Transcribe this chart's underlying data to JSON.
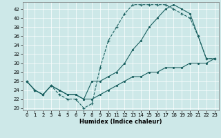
{
  "xlabel": "Humidex (Indice chaleur)",
  "bg_color": "#cde8e8",
  "line_color": "#1a6060",
  "xlim": [
    -0.5,
    23.5
  ],
  "ylim": [
    19.5,
    43.5
  ],
  "yticks": [
    20,
    22,
    24,
    26,
    28,
    30,
    32,
    34,
    36,
    38,
    40,
    42
  ],
  "xticks": [
    0,
    1,
    2,
    3,
    4,
    5,
    6,
    7,
    8,
    9,
    10,
    11,
    12,
    13,
    14,
    15,
    16,
    17,
    18,
    19,
    20,
    21,
    22,
    23
  ],
  "line1_x": [
    0,
    1,
    2,
    3,
    4,
    5,
    6,
    7,
    8,
    9,
    10,
    11,
    12,
    13,
    14,
    15,
    16,
    17,
    18,
    19,
    20,
    21,
    22,
    23
  ],
  "line1_y": [
    26,
    24,
    23,
    25,
    23,
    22,
    22,
    20,
    21,
    29,
    35,
    38,
    41,
    43,
    43,
    43,
    43,
    43,
    42,
    41,
    40,
    36,
    31,
    31
  ],
  "line2_x": [
    0,
    1,
    2,
    3,
    4,
    5,
    6,
    7,
    8,
    9,
    10,
    11,
    12,
    13,
    14,
    15,
    16,
    17,
    18,
    19,
    20,
    21,
    22,
    23
  ],
  "line2_y": [
    26,
    24,
    23,
    25,
    24,
    23,
    23,
    22,
    26,
    26,
    27,
    28,
    30,
    33,
    35,
    38,
    40,
    42,
    43,
    42,
    41,
    36,
    31,
    31
  ],
  "line3_x": [
    0,
    1,
    2,
    3,
    4,
    5,
    6,
    7,
    8,
    9,
    10,
    11,
    12,
    13,
    14,
    15,
    16,
    17,
    18,
    19,
    20,
    21,
    22,
    23
  ],
  "line3_y": [
    26,
    24,
    23,
    25,
    24,
    23,
    23,
    22,
    22,
    23,
    24,
    25,
    26,
    27,
    27,
    28,
    28,
    29,
    29,
    29,
    30,
    30,
    30,
    31
  ]
}
